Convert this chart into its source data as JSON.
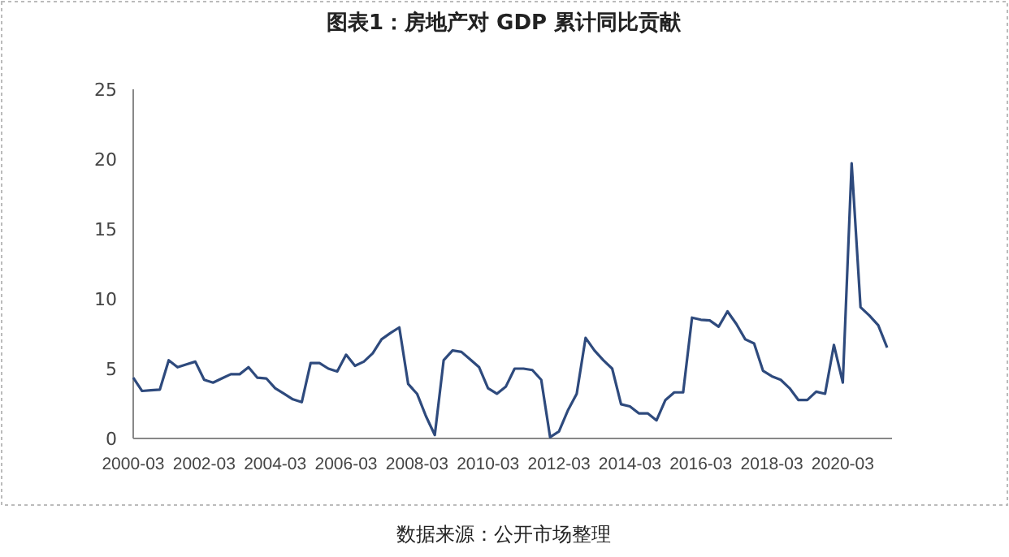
{
  "chart_data": {
    "type": "line",
    "title": "图表1：房地产对 GDP 累计同比贡献",
    "annotations": [
      "数据来源：公开市场整理"
    ],
    "categories": [
      "2000-03",
      null,
      null,
      null,
      null,
      null,
      null,
      null,
      "2002-03",
      null,
      null,
      null,
      null,
      null,
      null,
      null,
      "2004-03",
      null,
      null,
      null,
      null,
      null,
      null,
      null,
      "2006-03",
      null,
      null,
      null,
      null,
      null,
      null,
      null,
      "2008-03",
      null,
      null,
      null,
      null,
      null,
      null,
      null,
      "2010-03",
      null,
      null,
      null,
      null,
      null,
      null,
      null,
      "2012-03",
      null,
      null,
      null,
      null,
      null,
      null,
      null,
      "2014-03",
      null,
      null,
      null,
      null,
      null,
      null,
      null,
      "2016-03",
      null,
      null,
      null,
      null,
      null,
      null,
      null,
      "2018-03",
      null,
      null,
      null,
      null,
      null,
      null,
      null,
      "2020-03",
      null,
      null,
      null,
      null,
      null
    ],
    "values": [
      4.35,
      3.4,
      3.45,
      3.5,
      5.6,
      5.1,
      5.3,
      5.5,
      4.2,
      4.0,
      4.3,
      4.6,
      4.6,
      5.1,
      4.35,
      4.3,
      3.6,
      3.2,
      2.8,
      2.6,
      5.4,
      5.4,
      5.0,
      4.8,
      6.0,
      5.2,
      5.5,
      6.1,
      7.1,
      7.55,
      7.95,
      3.9,
      3.2,
      1.6,
      0.25,
      5.6,
      6.3,
      6.2,
      5.65,
      5.1,
      3.6,
      3.2,
      3.7,
      5.0,
      5.0,
      4.9,
      4.2,
      0.1,
      0.5,
      2.0,
      3.2,
      7.2,
      6.3,
      5.6,
      5.0,
      2.45,
      2.3,
      1.8,
      1.8,
      1.3,
      2.75,
      3.3,
      3.3,
      8.65,
      8.5,
      8.45,
      8.0,
      9.1,
      8.2,
      7.1,
      6.8,
      4.85,
      4.45,
      4.2,
      3.6,
      2.75,
      2.75,
      3.35,
      3.2,
      6.7,
      4.0,
      19.7,
      9.4,
      8.8,
      8.1,
      6.5
    ],
    "color": "#2e4a7d",
    "ylim": [
      0,
      25
    ],
    "yticks": [
      0,
      5,
      10,
      15,
      20,
      25
    ]
  }
}
